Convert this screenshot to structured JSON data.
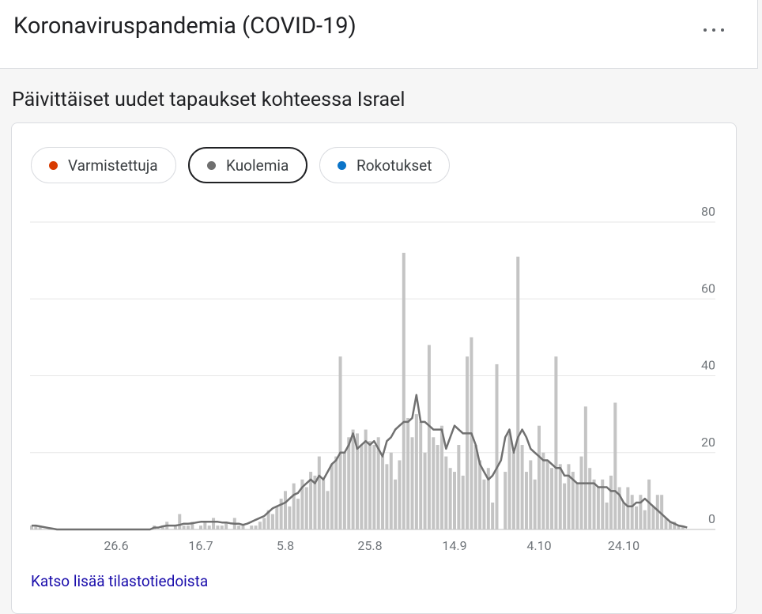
{
  "header": {
    "title": "Koronaviruspandemia (COVID-19)"
  },
  "section_title": "Päivittäiset uudet tapaukset kohteessa Israel",
  "chips": [
    {
      "label": "Varmistettuja",
      "color": "#d83b01",
      "selected": false
    },
    {
      "label": "Kuolemia",
      "color": "#6f6f6f",
      "selected": true
    },
    {
      "label": "Rokotukset",
      "color": "#0b74c8",
      "selected": false
    }
  ],
  "link": "Katso lisää tilastotiedoista",
  "chart_data": {
    "type": "bar-line",
    "categories": [
      null,
      null,
      null,
      null,
      null,
      null,
      null,
      null,
      null,
      null,
      null,
      null,
      null,
      null,
      null,
      null,
      null,
      null,
      null,
      null,
      "26.6",
      null,
      null,
      null,
      null,
      null,
      null,
      null,
      null,
      null,
      null,
      null,
      null,
      null,
      null,
      null,
      null,
      null,
      null,
      null,
      "16.7",
      null,
      null,
      null,
      null,
      null,
      null,
      null,
      null,
      null,
      null,
      null,
      null,
      null,
      null,
      null,
      null,
      null,
      null,
      null,
      "5.8",
      null,
      null,
      null,
      null,
      null,
      null,
      null,
      null,
      null,
      null,
      null,
      null,
      null,
      null,
      null,
      null,
      null,
      null,
      null,
      "25.8",
      null,
      null,
      null,
      null,
      null,
      null,
      null,
      null,
      null,
      null,
      null,
      null,
      null,
      null,
      null,
      null,
      null,
      null,
      null,
      "14.9",
      null,
      null,
      null,
      null,
      null,
      null,
      null,
      null,
      null,
      null,
      null,
      null,
      null,
      null,
      null,
      null,
      null,
      null,
      null,
      "4.10",
      null,
      null,
      null,
      null,
      null,
      null,
      null,
      null,
      null,
      null,
      null,
      null,
      null,
      null,
      null,
      null,
      null,
      null,
      null,
      "24.10",
      null,
      null,
      null,
      null,
      null,
      null,
      null,
      null,
      null,
      null,
      null,
      null,
      null,
      null,
      null
    ],
    "series": [
      {
        "kind": "bar",
        "color": "#c4c4c4",
        "values": [
          1,
          1,
          1,
          0,
          0,
          0,
          0,
          0,
          0,
          0,
          0,
          0,
          0,
          0,
          0,
          0,
          0,
          0,
          0,
          0,
          0,
          0,
          0,
          0,
          0,
          0,
          0,
          0,
          0,
          1,
          0,
          1,
          2,
          0,
          1,
          4,
          1,
          1,
          2,
          0,
          1,
          2,
          1,
          3,
          1,
          1,
          2,
          0,
          3,
          1,
          1,
          0,
          1,
          1,
          2,
          3,
          5,
          4,
          6,
          8,
          10,
          6,
          12,
          8,
          13,
          11,
          15,
          14,
          19,
          13,
          10,
          17,
          19,
          45,
          20,
          24,
          26,
          25,
          22,
          26,
          23,
          22,
          24,
          19,
          17,
          20,
          13,
          18,
          72,
          29,
          24,
          30,
          28,
          20,
          48,
          24,
          22,
          27,
          19,
          16,
          15,
          22,
          14,
          45,
          50,
          22,
          18,
          13,
          16,
          7,
          43,
          0,
          15,
          25,
          20,
          71,
          22,
          15,
          18,
          13,
          27,
          20,
          18,
          16,
          45,
          17,
          12,
          17,
          15,
          12,
          19,
          32,
          16,
          13,
          11,
          13,
          7,
          14,
          33,
          11,
          7,
          11,
          9,
          6,
          9,
          5,
          13,
          6,
          9,
          9,
          3,
          2,
          2,
          1,
          1,
          0
        ]
      },
      {
        "kind": "line",
        "color": "#707070",
        "values": [
          1,
          1,
          0.8,
          0.6,
          0.4,
          0.2,
          0,
          0,
          0,
          0,
          0,
          0,
          0,
          0,
          0,
          0,
          0,
          0,
          0,
          0,
          0,
          0,
          0,
          0,
          0,
          0,
          0,
          0,
          0,
          0.5,
          0.5,
          0.8,
          1,
          1,
          1,
          1.2,
          1.5,
          1.5,
          1.6,
          1.8,
          2,
          2,
          2,
          2,
          2,
          1.8,
          1.8,
          1.6,
          1.5,
          1.5,
          1.2,
          1.5,
          2,
          2.5,
          3,
          3.5,
          4.5,
          5.5,
          6,
          6.5,
          7,
          8,
          9,
          9.5,
          11,
          12,
          13,
          12,
          14,
          13,
          15,
          17,
          18,
          20,
          20,
          22,
          25,
          21,
          22,
          23,
          22,
          23,
          21,
          19,
          23,
          24,
          26,
          27,
          28,
          28,
          29,
          35,
          28,
          28,
          27,
          26,
          26,
          26,
          21,
          24,
          27,
          26,
          25,
          25,
          25,
          22,
          17,
          15,
          13,
          14,
          16,
          18,
          24,
          26,
          20,
          24,
          26,
          24,
          21,
          20,
          19,
          18,
          18,
          17,
          16,
          16,
          14,
          14,
          13,
          12,
          12,
          12,
          12,
          12,
          11,
          11,
          11,
          10,
          10,
          9,
          7,
          6,
          6,
          7,
          7,
          8,
          7,
          6,
          5,
          4,
          3,
          2,
          1.5,
          1,
          0.8,
          0.5
        ]
      }
    ],
    "ylim": [
      0,
      80
    ],
    "yticks": [
      0,
      20,
      40,
      60,
      80
    ],
    "grid": true
  }
}
